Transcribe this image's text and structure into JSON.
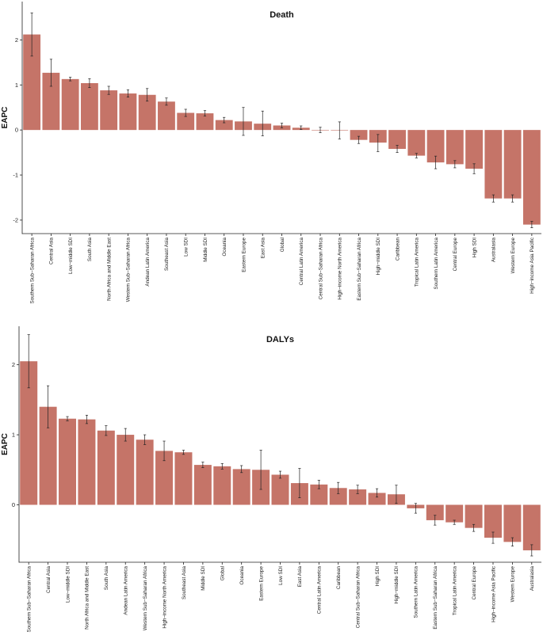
{
  "chart_data": [
    {
      "type": "bar",
      "title": "Death",
      "xlabel": "",
      "ylabel": "EAPC",
      "ylim": [
        -2.3,
        2.85
      ],
      "yticks": [
        -2,
        -1,
        0,
        1,
        2
      ],
      "grid": false,
      "categories": [
        "Southern Sub−Saharan Africa",
        "Central Asia",
        "Low−middle SDI",
        "South Asia",
        "North Africa and Middle East",
        "Western Sub−Saharan Africa",
        "Andean Latin America",
        "Southeast Asia",
        "Low SDI",
        "Middle SDI",
        "Oceania",
        "Eastern Europe",
        "East Asia",
        "Global",
        "Central Latin America",
        "Central Sub−Saharan Africa",
        "High−income North America",
        "Eastern Sub−Saharan Africa",
        "High−middle SDI",
        "Caribbean",
        "Tropical Latin America",
        "Southern Latin America",
        "Central Europe",
        "High SDI",
        "Australasia",
        "Western Europe",
        "High−income Asia Pacific"
      ],
      "values": [
        2.12,
        1.27,
        1.13,
        1.04,
        0.88,
        0.81,
        0.78,
        0.63,
        0.38,
        0.37,
        0.22,
        0.19,
        0.14,
        0.1,
        0.05,
        0.0,
        -0.01,
        -0.22,
        -0.28,
        -0.42,
        -0.57,
        -0.72,
        -0.76,
        -0.86,
        -1.52,
        -1.52,
        -2.1
      ],
      "lower": [
        1.64,
        0.97,
        1.09,
        0.94,
        0.79,
        0.73,
        0.64,
        0.55,
        0.3,
        0.31,
        0.16,
        -0.12,
        -0.13,
        0.05,
        0.01,
        -0.06,
        -0.2,
        -0.3,
        -0.48,
        -0.5,
        -0.62,
        -0.86,
        -0.84,
        -0.97,
        -1.6,
        -1.6,
        -2.17
      ],
      "upper": [
        2.6,
        1.57,
        1.17,
        1.14,
        0.97,
        0.89,
        0.92,
        0.71,
        0.46,
        0.43,
        0.28,
        0.5,
        0.42,
        0.15,
        0.09,
        0.06,
        0.18,
        -0.14,
        -0.1,
        -0.34,
        -0.52,
        -0.58,
        -0.68,
        -0.75,
        -1.44,
        -1.44,
        -2.03
      ]
    },
    {
      "type": "bar",
      "title": "DALYs",
      "xlabel": "",
      "ylabel": "EAPC",
      "ylim": [
        -0.82,
        2.55
      ],
      "yticks": [
        0,
        1,
        2
      ],
      "grid": false,
      "categories": [
        "Southern Sub−Saharan Africa",
        "Central Asia",
        "Low−middle SDI",
        "North Africa and Middle East",
        "South Asia",
        "Andean Latin America",
        "Western Sub−Saharan Africa",
        "High−income North America",
        "Southeast Asia",
        "Middle SDI",
        "Global",
        "Oceania",
        "Eastern Europe",
        "Low SDI",
        "East Asia",
        "Central Latin America",
        "Caribbean",
        "Central Sub−Saharan Africa",
        "High SDI",
        "High−middle SDI",
        "Southern Latin America",
        "Eastern Sub−Saharan Africa",
        "Tropical Latin America",
        "Central Europe",
        "High−income Asia Pacific",
        "Western Europe",
        "Australasia"
      ],
      "values": [
        2.05,
        1.4,
        1.23,
        1.22,
        1.06,
        1.0,
        0.93,
        0.77,
        0.75,
        0.57,
        0.55,
        0.51,
        0.5,
        0.43,
        0.31,
        0.29,
        0.24,
        0.22,
        0.17,
        0.15,
        -0.05,
        -0.22,
        -0.25,
        -0.33,
        -0.47,
        -0.53,
        -0.65
      ],
      "lower": [
        1.67,
        1.1,
        1.2,
        1.16,
        0.99,
        0.91,
        0.86,
        0.63,
        0.72,
        0.53,
        0.51,
        0.46,
        0.22,
        0.38,
        0.1,
        0.23,
        0.16,
        0.16,
        0.11,
        0.02,
        -0.12,
        -0.29,
        -0.28,
        -0.38,
        -0.55,
        -0.59,
        -0.73
      ],
      "upper": [
        2.43,
        1.7,
        1.26,
        1.28,
        1.13,
        1.09,
        1.0,
        0.91,
        0.78,
        0.61,
        0.59,
        0.56,
        0.78,
        0.48,
        0.52,
        0.35,
        0.32,
        0.28,
        0.23,
        0.28,
        0.02,
        -0.15,
        -0.22,
        -0.28,
        -0.39,
        -0.47,
        -0.57
      ]
    }
  ],
  "colors": {
    "bar": "#c57468",
    "axis": "#222222",
    "errorbar": "#222222"
  }
}
